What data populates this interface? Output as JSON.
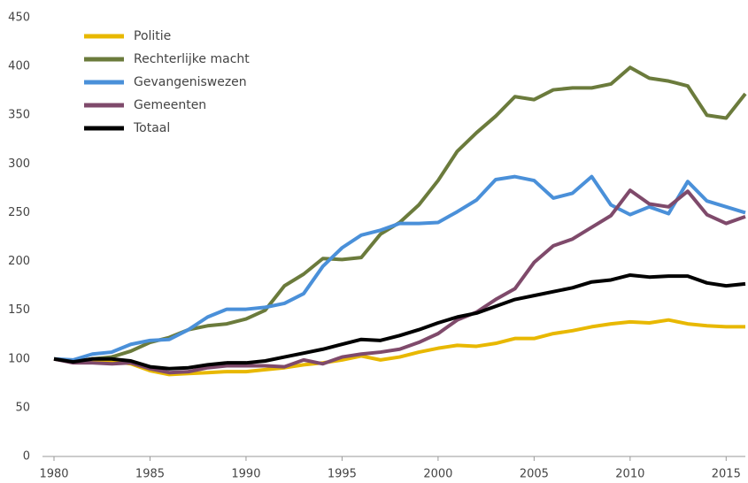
{
  "chart_data": {
    "type": "line",
    "x": [
      1980,
      1981,
      1982,
      1983,
      1984,
      1985,
      1986,
      1987,
      1988,
      1989,
      1990,
      1991,
      1992,
      1993,
      1994,
      1995,
      1996,
      1997,
      1998,
      1999,
      2000,
      2001,
      2002,
      2003,
      2004,
      2005,
      2006,
      2007,
      2008,
      2009,
      2010,
      2011,
      2012,
      2013,
      2014,
      2015,
      2016
    ],
    "series": [
      {
        "name": "Politie",
        "color": "#e8b800",
        "values": [
          100,
          97,
          98,
          98,
          95,
          88,
          84,
          85,
          86,
          87,
          87,
          89,
          91,
          94,
          96,
          99,
          103,
          99,
          102,
          107,
          111,
          114,
          113,
          116,
          121,
          121,
          126,
          129,
          133,
          136,
          138,
          137,
          140,
          136,
          134,
          133,
          133
        ]
      },
      {
        "name": "Rechterlijke macht",
        "color": "#6b7b3c",
        "values": [
          100,
          97,
          100,
          102,
          108,
          117,
          122,
          130,
          134,
          136,
          141,
          150,
          175,
          187,
          203,
          202,
          204,
          228,
          240,
          258,
          283,
          313,
          332,
          349,
          369,
          366,
          376,
          378,
          378,
          382,
          399,
          388,
          385,
          380,
          350,
          347,
          372
        ]
      },
      {
        "name": "Gevangeniswezen",
        "color": "#4a90d9",
        "values": [
          100,
          99,
          105,
          107,
          115,
          119,
          120,
          130,
          143,
          151,
          151,
          153,
          157,
          167,
          195,
          214,
          227,
          232,
          239,
          239,
          240,
          251,
          263,
          284,
          287,
          283,
          265,
          270,
          287,
          258,
          248,
          256,
          249,
          282,
          262,
          256,
          250
        ]
      },
      {
        "name": "Gemeenten",
        "color": "#7f4a6b",
        "values": [
          100,
          96,
          96,
          95,
          96,
          90,
          86,
          87,
          91,
          93,
          93,
          93,
          92,
          99,
          95,
          102,
          105,
          107,
          110,
          117,
          126,
          140,
          148,
          161,
          172,
          199,
          216,
          223,
          235,
          247,
          273,
          259,
          256,
          272,
          248,
          239,
          246
        ]
      },
      {
        "name": "Totaal",
        "color": "#000000",
        "values": [
          100,
          97,
          100,
          100,
          98,
          92,
          90,
          91,
          94,
          96,
          96,
          98,
          102,
          106,
          110,
          115,
          120,
          119,
          124,
          130,
          137,
          143,
          147,
          154,
          161,
          165,
          169,
          173,
          179,
          181,
          186,
          184,
          185,
          185,
          178,
          175,
          177
        ]
      }
    ],
    "xlim": [
      1980,
      2016
    ],
    "xticks": [
      1980,
      1985,
      1990,
      1995,
      2000,
      2005,
      2010,
      2015
    ],
    "ylim": [
      0,
      450
    ],
    "yticks": [
      0,
      50,
      100,
      150,
      200,
      250,
      300,
      350,
      400,
      450
    ],
    "legend": "upper left"
  }
}
